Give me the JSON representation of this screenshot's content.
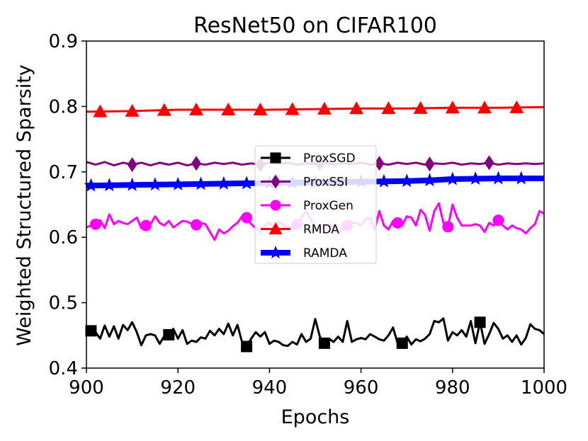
{
  "chart_data": {
    "type": "line",
    "title": "ResNet50 on CIFAR100",
    "xlabel": "Epochs",
    "ylabel": "Weighted Structured Sparsity",
    "xlim": [
      900,
      1000
    ],
    "ylim": [
      0.4,
      0.9
    ],
    "xticks": [
      900,
      920,
      940,
      960,
      980,
      1000
    ],
    "xtick_labels": [
      "900",
      "920",
      "940",
      "960",
      "980",
      "1000"
    ],
    "yticks": [
      0.4,
      0.5,
      0.6,
      0.7,
      0.8,
      0.9
    ],
    "ytick_labels": [
      "0.4",
      "0.5",
      "0.6",
      "0.7",
      "0.8",
      "0.9"
    ],
    "legend_position": "center",
    "series": [
      {
        "name": "ProxSGD",
        "color": "#000000",
        "marker": "square",
        "width": "normal",
        "marker_x": [
          901,
          918,
          935,
          952,
          969,
          986
        ],
        "points": [
          [
            901,
            0.457
          ],
          [
            902,
            0.455
          ],
          [
            903,
            0.445
          ],
          [
            904,
            0.465
          ],
          [
            905,
            0.448
          ],
          [
            906,
            0.464
          ],
          [
            907,
            0.445
          ],
          [
            908,
            0.466
          ],
          [
            909,
            0.458
          ],
          [
            910,
            0.47
          ],
          [
            911,
            0.455
          ],
          [
            912,
            0.435
          ],
          [
            913,
            0.45
          ],
          [
            914,
            0.452
          ],
          [
            915,
            0.45
          ],
          [
            916,
            0.437
          ],
          [
            917,
            0.449
          ],
          [
            918,
            0.451
          ],
          [
            919,
            0.46
          ],
          [
            920,
            0.445
          ],
          [
            921,
            0.458
          ],
          [
            922,
            0.437
          ],
          [
            923,
            0.442
          ],
          [
            924,
            0.44
          ],
          [
            925,
            0.447
          ],
          [
            926,
            0.445
          ],
          [
            927,
            0.457
          ],
          [
            928,
            0.45
          ],
          [
            929,
            0.46
          ],
          [
            930,
            0.452
          ],
          [
            931,
            0.468
          ],
          [
            932,
            0.45
          ],
          [
            933,
            0.466
          ],
          [
            934,
            0.44
          ],
          [
            935,
            0.433
          ],
          [
            936,
            0.445
          ],
          [
            937,
            0.455
          ],
          [
            938,
            0.448
          ],
          [
            939,
            0.455
          ],
          [
            940,
            0.437
          ],
          [
            941,
            0.442
          ],
          [
            942,
            0.44
          ],
          [
            943,
            0.435
          ],
          [
            944,
            0.434
          ],
          [
            945,
            0.44
          ],
          [
            946,
            0.436
          ],
          [
            947,
            0.452
          ],
          [
            948,
            0.44
          ],
          [
            949,
            0.445
          ],
          [
            950,
            0.475
          ],
          [
            951,
            0.448
          ],
          [
            952,
            0.438
          ],
          [
            953,
            0.445
          ],
          [
            954,
            0.44
          ],
          [
            955,
            0.448
          ],
          [
            956,
            0.44
          ],
          [
            957,
            0.472
          ],
          [
            958,
            0.44
          ],
          [
            959,
            0.444
          ],
          [
            960,
            0.446
          ],
          [
            961,
            0.444
          ],
          [
            962,
            0.452
          ],
          [
            963,
            0.448
          ],
          [
            964,
            0.444
          ],
          [
            965,
            0.442
          ],
          [
            966,
            0.45
          ],
          [
            967,
            0.462
          ],
          [
            968,
            0.438
          ],
          [
            969,
            0.438
          ],
          [
            970,
            0.448
          ],
          [
            971,
            0.436
          ],
          [
            972,
            0.444
          ],
          [
            973,
            0.441
          ],
          [
            974,
            0.445
          ],
          [
            975,
            0.452
          ],
          [
            976,
            0.472
          ],
          [
            977,
            0.47
          ],
          [
            978,
            0.476
          ],
          [
            979,
            0.442
          ],
          [
            980,
            0.455
          ],
          [
            981,
            0.45
          ],
          [
            982,
            0.458
          ],
          [
            983,
            0.448
          ],
          [
            984,
            0.472
          ],
          [
            985,
            0.438
          ],
          [
            986,
            0.47
          ],
          [
            987,
            0.437
          ],
          [
            988,
            0.452
          ],
          [
            989,
            0.469
          ],
          [
            990,
            0.46
          ],
          [
            991,
            0.445
          ],
          [
            992,
            0.45
          ],
          [
            993,
            0.44
          ],
          [
            994,
            0.45
          ],
          [
            995,
            0.436
          ],
          [
            996,
            0.446
          ],
          [
            997,
            0.467
          ],
          [
            998,
            0.46
          ],
          [
            999,
            0.458
          ],
          [
            1000,
            0.452
          ]
        ]
      },
      {
        "name": "ProxSSI",
        "color": "#800080",
        "marker": "diamond",
        "width": "normal",
        "marker_x": [
          910,
          924,
          938,
          951,
          964,
          975,
          988
        ],
        "points": [
          [
            900,
            0.715
          ],
          [
            902,
            0.711
          ],
          [
            904,
            0.715
          ],
          [
            906,
            0.71
          ],
          [
            908,
            0.714
          ],
          [
            910,
            0.711
          ],
          [
            912,
            0.714
          ],
          [
            914,
            0.71
          ],
          [
            916,
            0.714
          ],
          [
            918,
            0.711
          ],
          [
            920,
            0.714
          ],
          [
            922,
            0.71
          ],
          [
            924,
            0.713
          ],
          [
            926,
            0.711
          ],
          [
            928,
            0.714
          ],
          [
            930,
            0.712
          ],
          [
            932,
            0.714
          ],
          [
            934,
            0.711
          ],
          [
            936,
            0.713
          ],
          [
            938,
            0.711
          ],
          [
            940,
            0.714
          ],
          [
            942,
            0.712
          ],
          [
            944,
            0.714
          ],
          [
            946,
            0.711
          ],
          [
            948,
            0.713
          ],
          [
            950,
            0.712
          ],
          [
            952,
            0.714
          ],
          [
            954,
            0.711
          ],
          [
            956,
            0.713
          ],
          [
            958,
            0.712
          ],
          [
            960,
            0.714
          ],
          [
            962,
            0.711
          ],
          [
            964,
            0.713
          ],
          [
            966,
            0.711
          ],
          [
            968,
            0.714
          ],
          [
            970,
            0.712
          ],
          [
            972,
            0.714
          ],
          [
            974,
            0.711
          ],
          [
            976,
            0.713
          ],
          [
            978,
            0.712
          ],
          [
            980,
            0.714
          ],
          [
            982,
            0.711
          ],
          [
            984,
            0.713
          ],
          [
            986,
            0.712
          ],
          [
            988,
            0.714
          ],
          [
            990,
            0.711
          ],
          [
            992,
            0.713
          ],
          [
            994,
            0.712
          ],
          [
            996,
            0.713
          ],
          [
            998,
            0.712
          ],
          [
            1000,
            0.713
          ]
        ]
      },
      {
        "name": "ProxGen",
        "color": "#ff00ff",
        "marker": "circle",
        "width": "normal",
        "marker_x": [
          902,
          913,
          924,
          935,
          946,
          957,
          968,
          979,
          990
        ],
        "points": [
          [
            900,
            0.615
          ],
          [
            901,
            0.618
          ],
          [
            902,
            0.62
          ],
          [
            903,
            0.626
          ],
          [
            904,
            0.614
          ],
          [
            905,
            0.635
          ],
          [
            906,
            0.62
          ],
          [
            907,
            0.625
          ],
          [
            908,
            0.622
          ],
          [
            909,
            0.62
          ],
          [
            910,
            0.625
          ],
          [
            911,
            0.63
          ],
          [
            912,
            0.614
          ],
          [
            913,
            0.618
          ],
          [
            914,
            0.62
          ],
          [
            915,
            0.632
          ],
          [
            916,
            0.622
          ],
          [
            917,
            0.618
          ],
          [
            918,
            0.625
          ],
          [
            919,
            0.615
          ],
          [
            920,
            0.62
          ],
          [
            921,
            0.625
          ],
          [
            922,
            0.624
          ],
          [
            923,
            0.62
          ],
          [
            924,
            0.619
          ],
          [
            925,
            0.622
          ],
          [
            926,
            0.62
          ],
          [
            927,
            0.608
          ],
          [
            928,
            0.596
          ],
          [
            929,
            0.612
          ],
          [
            930,
            0.606
          ],
          [
            931,
            0.61
          ],
          [
            932,
            0.617
          ],
          [
            933,
            0.622
          ],
          [
            934,
            0.632
          ],
          [
            935,
            0.63
          ],
          [
            936,
            0.62
          ],
          [
            937,
            0.614
          ],
          [
            938,
            0.608
          ],
          [
            939,
            0.618
          ],
          [
            940,
            0.622
          ],
          [
            941,
            0.614
          ],
          [
            942,
            0.624
          ],
          [
            943,
            0.618
          ],
          [
            944,
            0.616
          ],
          [
            945,
            0.614
          ],
          [
            946,
            0.62
          ],
          [
            947,
            0.63
          ],
          [
            948,
            0.64
          ],
          [
            949,
            0.628
          ],
          [
            950,
            0.614
          ],
          [
            951,
            0.612
          ],
          [
            952,
            0.618
          ],
          [
            953,
            0.618
          ],
          [
            954,
            0.618
          ],
          [
            955,
            0.605
          ],
          [
            956,
            0.615
          ],
          [
            957,
            0.618
          ],
          [
            958,
            0.622
          ],
          [
            959,
            0.622
          ],
          [
            960,
            0.618
          ],
          [
            961,
            0.628
          ],
          [
            962,
            0.63
          ],
          [
            963,
            0.612
          ],
          [
            964,
            0.64
          ],
          [
            965,
            0.618
          ],
          [
            966,
            0.612
          ],
          [
            967,
            0.625
          ],
          [
            968,
            0.622
          ],
          [
            969,
            0.618
          ],
          [
            970,
            0.632
          ],
          [
            971,
            0.63
          ],
          [
            972,
            0.618
          ],
          [
            973,
            0.642
          ],
          [
            974,
            0.634
          ],
          [
            975,
            0.61
          ],
          [
            976,
            0.64
          ],
          [
            977,
            0.652
          ],
          [
            978,
            0.622
          ],
          [
            979,
            0.616
          ],
          [
            980,
            0.65
          ],
          [
            981,
            0.63
          ],
          [
            982,
            0.618
          ],
          [
            983,
            0.618
          ],
          [
            984,
            0.618
          ],
          [
            985,
            0.62
          ],
          [
            986,
            0.618
          ],
          [
            987,
            0.608
          ],
          [
            988,
            0.622
          ],
          [
            989,
            0.618
          ],
          [
            990,
            0.626
          ],
          [
            991,
            0.618
          ],
          [
            992,
            0.612
          ],
          [
            993,
            0.618
          ],
          [
            994,
            0.614
          ],
          [
            995,
            0.612
          ],
          [
            996,
            0.606
          ],
          [
            997,
            0.614
          ],
          [
            998,
            0.62
          ],
          [
            999,
            0.64
          ],
          [
            1000,
            0.636
          ]
        ]
      },
      {
        "name": "RMDA",
        "color": "#ff0000",
        "marker": "triangle",
        "width": "normal",
        "marker_x": [
          903,
          910,
          917,
          924,
          931,
          938,
          945,
          952,
          959,
          966,
          973,
          980,
          987,
          994
        ],
        "points": [
          [
            900,
            0.792
          ],
          [
            910,
            0.793
          ],
          [
            920,
            0.795
          ],
          [
            930,
            0.795
          ],
          [
            940,
            0.795
          ],
          [
            950,
            0.796
          ],
          [
            960,
            0.797
          ],
          [
            970,
            0.797
          ],
          [
            980,
            0.798
          ],
          [
            990,
            0.798
          ],
          [
            1000,
            0.799
          ]
        ]
      },
      {
        "name": "RAMDA",
        "color": "#0000ff",
        "marker": "star",
        "width": "thick",
        "marker_x": [
          901,
          905,
          910,
          915,
          920,
          925,
          930,
          935,
          940,
          945,
          950,
          955,
          960,
          965,
          970,
          975,
          980,
          985,
          990,
          995
        ],
        "points": [
          [
            900,
            0.679
          ],
          [
            910,
            0.68
          ],
          [
            920,
            0.681
          ],
          [
            930,
            0.682
          ],
          [
            940,
            0.683
          ],
          [
            950,
            0.684
          ],
          [
            960,
            0.685
          ],
          [
            970,
            0.686
          ],
          [
            975,
            0.687
          ],
          [
            980,
            0.689
          ],
          [
            990,
            0.69
          ],
          [
            1000,
            0.69
          ]
        ]
      }
    ]
  }
}
